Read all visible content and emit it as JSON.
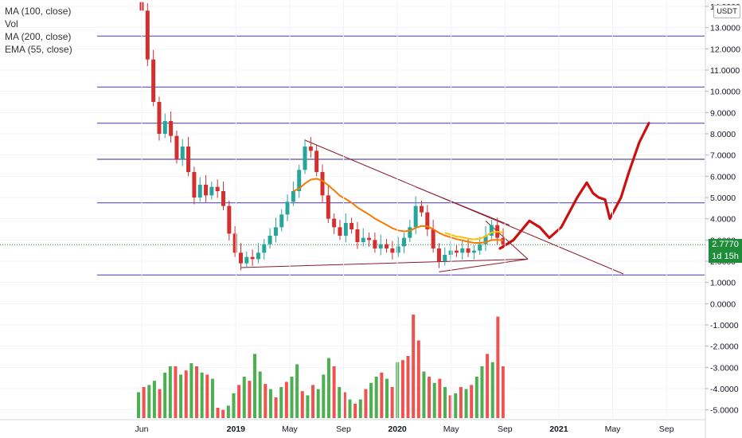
{
  "legend": {
    "ma100": "MA (100, close)",
    "vol": "Vol",
    "ma200": "MA (200, close)",
    "ema55": "EMA (55, close)"
  },
  "currency": "USDT",
  "last_price": "2.7770",
  "countdown": "1d 15h",
  "colors": {
    "up": "#26a69a",
    "up_vol": "#4caf50",
    "down": "#d32f2f",
    "down_vol": "#ef5350",
    "hline": "#5b4fb0",
    "trend": "#8b1a2b",
    "ema": "#f57c00",
    "ma": "#ffc107",
    "projection": "#cc1010",
    "green_tag": "#1e8c3a"
  },
  "chart_data": {
    "type": "candlestick",
    "price_axis": {
      "ylim": [
        -5.2,
        14.3
      ],
      "ticks": [
        "14.0000",
        "13.0000",
        "12.0000",
        "11.0000",
        "10.0000",
        "9.0000",
        "8.0000",
        "7.0000",
        "6.0000",
        "5.0000",
        "4.0000",
        "3.0000",
        "2.0000",
        "1.0000",
        "0.0000",
        "-1.0000",
        "-2.0000",
        "-3.0000",
        "-4.0000",
        "-5.0000"
      ],
      "tick_values": [
        14,
        13,
        12,
        11,
        10,
        9,
        8,
        7,
        6,
        5,
        4,
        3,
        2,
        1,
        0,
        -1,
        -2,
        -3,
        -4,
        -5
      ]
    },
    "time_axis": {
      "labels": [
        "Jun",
        "2019",
        "May",
        "Sep",
        "2020",
        "May",
        "Sep",
        "2021",
        "May",
        "Sep"
      ],
      "label_dates": [
        "2018-06",
        "2019-01",
        "2019-05",
        "2019-09",
        "2020-01",
        "2020-05",
        "2020-09",
        "2021-01",
        "2021-05",
        "2021-09"
      ]
    },
    "horizontal_levels": [
      12.6,
      10.2,
      8.5,
      6.8,
      4.75,
      1.35
    ],
    "close_path": [
      [
        0,
        13.8
      ],
      [
        1,
        11.5
      ],
      [
        2,
        9.5
      ],
      [
        3,
        8.0
      ],
      [
        4,
        8.6
      ],
      [
        5,
        7.9
      ],
      [
        6,
        6.8
      ],
      [
        7,
        7.4
      ],
      [
        8,
        6.2
      ],
      [
        9,
        5.0
      ],
      [
        10,
        5.6
      ],
      [
        11,
        5.1
      ],
      [
        12,
        5.5
      ],
      [
        13,
        5.3
      ],
      [
        14,
        4.6
      ],
      [
        15,
        3.3
      ],
      [
        16,
        2.4
      ],
      [
        17,
        1.9
      ],
      [
        18,
        2.2
      ],
      [
        19,
        2.1
      ],
      [
        20,
        2.4
      ],
      [
        21,
        2.8
      ],
      [
        22,
        3.2
      ],
      [
        23,
        3.6
      ],
      [
        24,
        4.2
      ],
      [
        25,
        4.8
      ],
      [
        26,
        5.3
      ],
      [
        27,
        6.3
      ],
      [
        28,
        7.4
      ],
      [
        29,
        7.2
      ],
      [
        30,
        6.2
      ],
      [
        31,
        5.1
      ],
      [
        32,
        4.0
      ],
      [
        33,
        3.6
      ],
      [
        34,
        3.2
      ],
      [
        35,
        3.8
      ],
      [
        36,
        3.5
      ],
      [
        37,
        2.9
      ],
      [
        38,
        3.1
      ],
      [
        39,
        3.0
      ],
      [
        40,
        2.6
      ],
      [
        41,
        2.8
      ],
      [
        42,
        2.6
      ],
      [
        43,
        2.4
      ],
      [
        44,
        2.7
      ],
      [
        45,
        3.1
      ],
      [
        46,
        3.6
      ],
      [
        47,
        4.6
      ],
      [
        48,
        4.3
      ],
      [
        49,
        3.5
      ],
      [
        50,
        2.6
      ],
      [
        51,
        2.0
      ],
      [
        52,
        2.3
      ],
      [
        53,
        2.5
      ],
      [
        54,
        2.4
      ],
      [
        55,
        2.6
      ],
      [
        56,
        2.4
      ],
      [
        57,
        2.5
      ],
      [
        58,
        2.8
      ],
      [
        59,
        3.2
      ],
      [
        60,
        3.7
      ],
      [
        61,
        3.1
      ],
      [
        62,
        2.8
      ]
    ],
    "volume": [
      {
        "v": 0.25,
        "up": true
      },
      {
        "v": 0.3,
        "up": false
      },
      {
        "v": 0.32,
        "up": true
      },
      {
        "v": 0.36,
        "up": true
      },
      {
        "v": 0.28,
        "up": false
      },
      {
        "v": 0.44,
        "up": true
      },
      {
        "v": 0.5,
        "up": true
      },
      {
        "v": 0.5,
        "up": false
      },
      {
        "v": 0.42,
        "up": true
      },
      {
        "v": 0.46,
        "up": false
      },
      {
        "v": 0.53,
        "up": true
      },
      {
        "v": 0.5,
        "up": false
      },
      {
        "v": 0.44,
        "up": true
      },
      {
        "v": 0.42,
        "up": false
      },
      {
        "v": 0.38,
        "up": true
      },
      {
        "v": 0.1,
        "up": false
      },
      {
        "v": 0.08,
        "up": false
      },
      {
        "v": 0.12,
        "up": true
      },
      {
        "v": 0.24,
        "up": true
      },
      {
        "v": 0.32,
        "up": false
      },
      {
        "v": 0.4,
        "up": true
      },
      {
        "v": 0.36,
        "up": false
      },
      {
        "v": 0.62,
        "up": true
      },
      {
        "v": 0.45,
        "up": true
      },
      {
        "v": 0.33,
        "up": false
      },
      {
        "v": 0.28,
        "up": true
      },
      {
        "v": 0.2,
        "up": false
      },
      {
        "v": 0.3,
        "up": true
      },
      {
        "v": 0.35,
        "up": false
      },
      {
        "v": 0.4,
        "up": true
      },
      {
        "v": 0.52,
        "up": true
      },
      {
        "v": 0.26,
        "up": false
      },
      {
        "v": 0.22,
        "up": true
      },
      {
        "v": 0.32,
        "up": false
      },
      {
        "v": 0.28,
        "up": true
      },
      {
        "v": 0.42,
        "up": true
      },
      {
        "v": 0.58,
        "up": true
      },
      {
        "v": 0.5,
        "up": false
      },
      {
        "v": 0.3,
        "up": true
      },
      {
        "v": 0.25,
        "up": false
      },
      {
        "v": 0.18,
        "up": true
      },
      {
        "v": 0.14,
        "up": false
      },
      {
        "v": 0.18,
        "up": true
      },
      {
        "v": 0.28,
        "up": false
      },
      {
        "v": 0.34,
        "up": true
      },
      {
        "v": 0.4,
        "up": true
      },
      {
        "v": 0.44,
        "up": false
      },
      {
        "v": 0.38,
        "up": true
      },
      {
        "v": 0.3,
        "up": false
      },
      {
        "v": 0.54,
        "up": true
      },
      {
        "v": 0.56,
        "up": false
      },
      {
        "v": 0.6,
        "up": false
      },
      {
        "v": 1.0,
        "up": false
      },
      {
        "v": 0.75,
        "up": false
      },
      {
        "v": 0.45,
        "up": true
      },
      {
        "v": 0.4,
        "up": false
      },
      {
        "v": 0.34,
        "up": true
      },
      {
        "v": 0.38,
        "up": false
      },
      {
        "v": 0.3,
        "up": true
      },
      {
        "v": 0.22,
        "up": false
      },
      {
        "v": 0.24,
        "up": true
      },
      {
        "v": 0.3,
        "up": false
      },
      {
        "v": 0.28,
        "up": true
      },
      {
        "v": 0.32,
        "up": false
      },
      {
        "v": 0.4,
        "up": true
      },
      {
        "v": 0.5,
        "up": true
      },
      {
        "v": 0.62,
        "up": false
      },
      {
        "v": 0.54,
        "up": true
      },
      {
        "v": 0.98,
        "up": false
      },
      {
        "v": 0.5,
        "up": false
      }
    ]
  }
}
